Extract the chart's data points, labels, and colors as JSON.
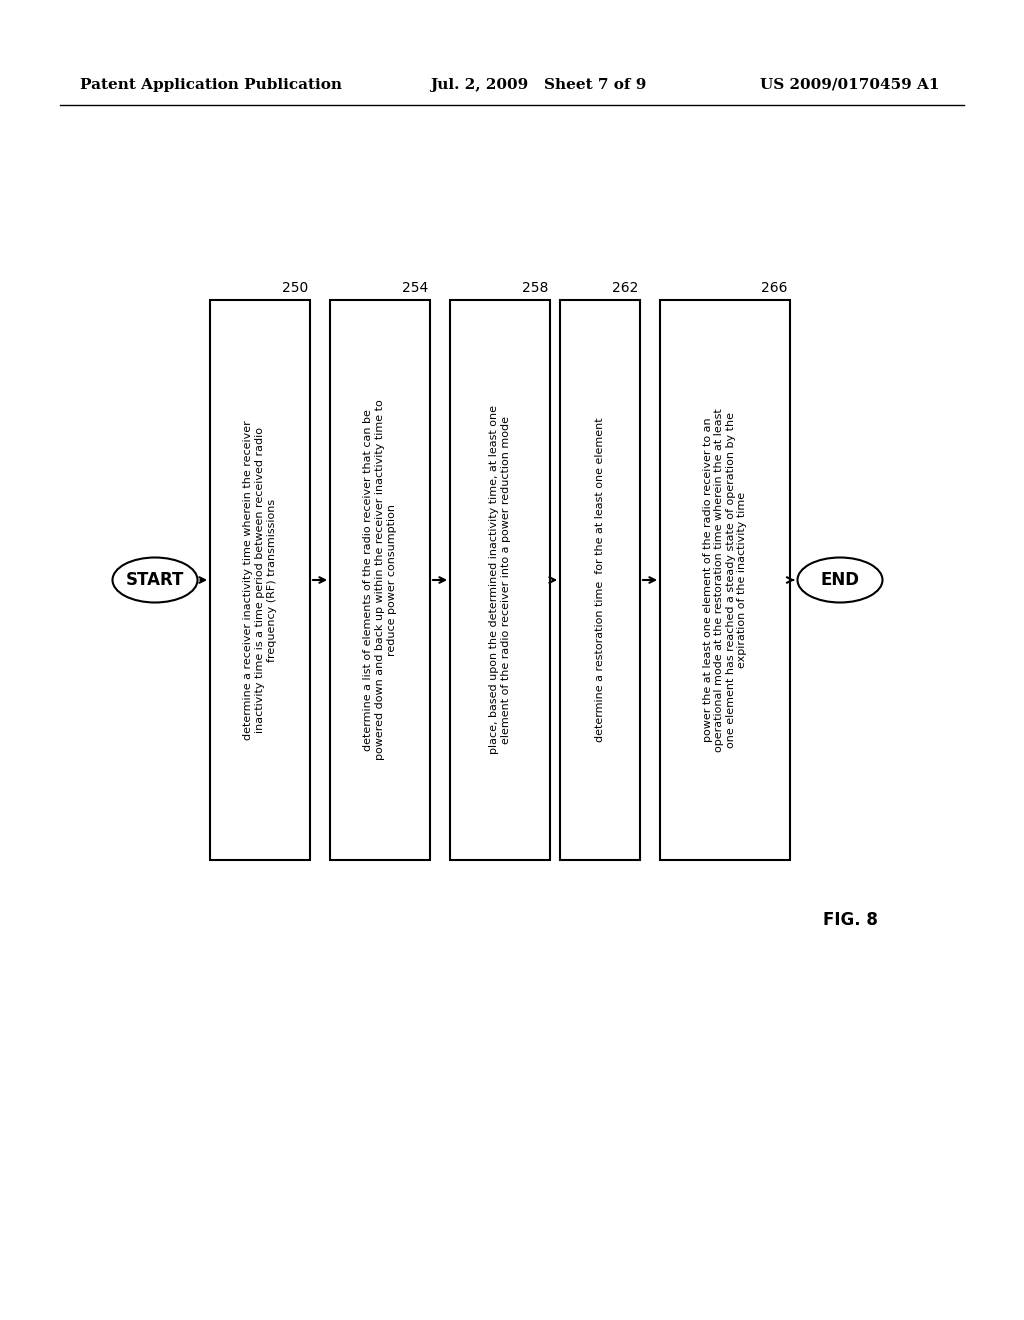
{
  "header_left": "Patent Application Publication",
  "header_center": "Jul. 2, 2009   Sheet 7 of 9",
  "header_right": "US 2009/0170459 A1",
  "figure_label": "FIG. 8",
  "background_color": "#ffffff",
  "diagram": {
    "start_label": "START",
    "end_label": "END",
    "flow_label": "250",
    "boxes": [
      {
        "id": 250,
        "label": "250",
        "text": "determine a receiver inactivity time wherein the receiver\ninactivity time is a time period between received radio\nfrequency (RF) transmissions"
      },
      {
        "id": 254,
        "label": "254",
        "text": "determine a list of elements of the radio receiver that can be\npowered down and back up within the receiver inactivity time to\nreduce power consumption"
      },
      {
        "id": 258,
        "label": "258",
        "text": "place, based upon the determined inactivity time, at least one\nelement of the radio receiver into a power reduction mode"
      },
      {
        "id": 262,
        "label": "262",
        "text": "determine a restoration time  for the at least one element"
      },
      {
        "id": 266,
        "label": "266",
        "text": "power the at least one element of the radio receiver to an\noperational mode at the restoration time wherein the at least\none element has reached a steady state of operation by the\nexpiration of the inactivity time"
      }
    ]
  }
}
